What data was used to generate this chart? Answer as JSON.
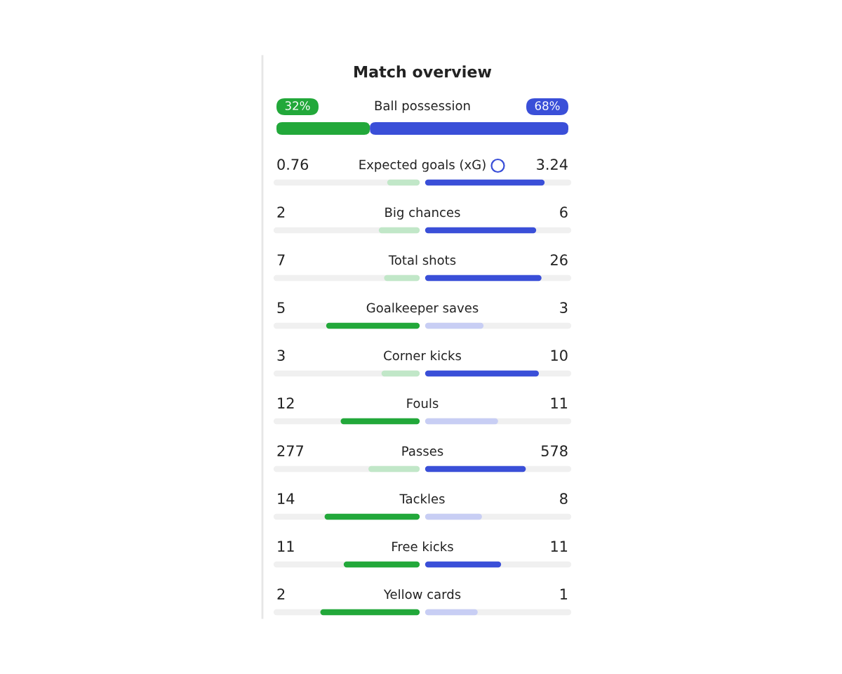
{
  "chart_data": {
    "type": "other",
    "title": "Match overview",
    "categories": [
      "Ball possession",
      "Expected goals (xG)",
      "Big chances",
      "Total shots",
      "Goalkeeper saves",
      "Corner kicks",
      "Fouls",
      "Passes",
      "Tackles",
      "Free kicks",
      "Yellow cards"
    ],
    "series": [
      {
        "color": "#22a83a",
        "values": [
          32,
          0.76,
          2,
          7,
          5,
          3,
          12,
          277,
          14,
          11,
          2
        ],
        "value_labels": [
          "32%",
          "0.76",
          "2",
          "7",
          "5",
          "3",
          "12",
          "277",
          "14",
          "11",
          "2"
        ]
      },
      {
        "color": "#3a4fd8",
        "values": [
          68,
          3.24,
          6,
          26,
          3,
          10,
          11,
          578,
          8,
          11,
          1
        ],
        "value_labels": [
          "68%",
          "3.24",
          "6",
          "26",
          "3",
          "10",
          "11",
          "578",
          "8",
          "11",
          "1"
        ]
      }
    ]
  }
}
